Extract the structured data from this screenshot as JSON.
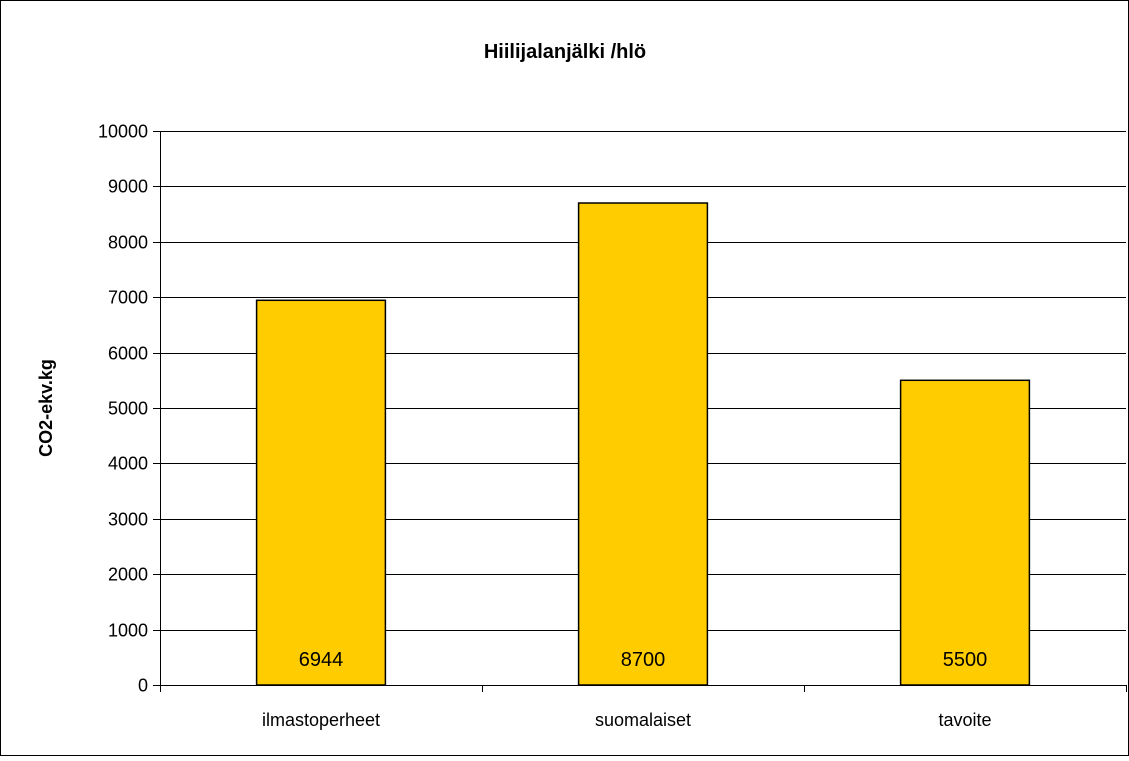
{
  "chart_data": {
    "type": "bar",
    "title": "Hiilijalanjälki /hlö",
    "xlabel": "",
    "ylabel": "CO2-ekv.kg",
    "categories": [
      "ilmastoperheet",
      "suomalaiset",
      "tavoite"
    ],
    "values": [
      6944,
      8700,
      5500
    ],
    "data_labels": [
      "6944",
      "8700",
      "5500"
    ],
    "ylim": [
      0,
      10000
    ],
    "yticks": [
      "0",
      "1000",
      "2000",
      "3000",
      "4000",
      "5000",
      "6000",
      "7000",
      "8000",
      "9000",
      "10000"
    ],
    "grid": true,
    "legend": "none",
    "colors": {
      "bar_fill": "#FFCC00",
      "bar_stroke": "#000000",
      "grid": "#000000",
      "text": "#000000",
      "background": "#FFFFFF"
    }
  }
}
